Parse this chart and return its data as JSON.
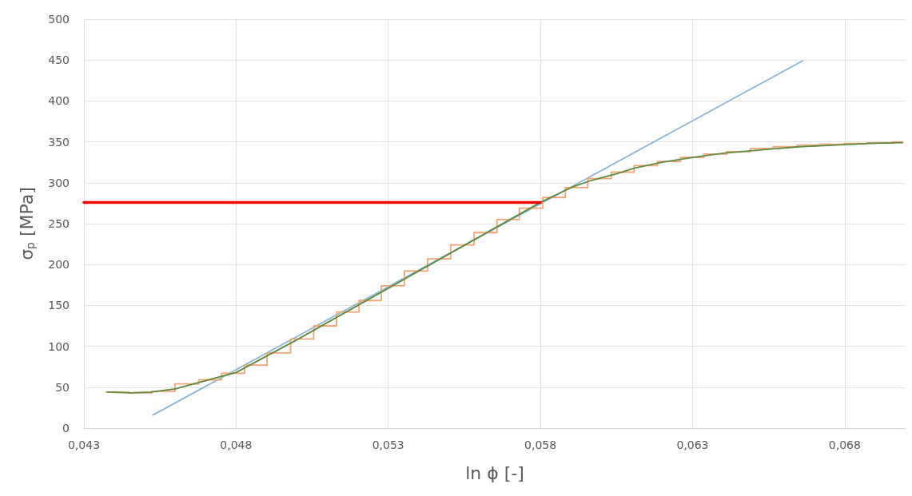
{
  "chart_data": {
    "type": "line",
    "xlabel": "ln ϕ [-]",
    "ylabel": "σ$_{p}$ [MPa]",
    "xlim": [
      0.043,
      0.07
    ],
    "xticks": [
      {
        "value": 0.043,
        "label": "0,043"
      },
      {
        "value": 0.048,
        "label": "0,048"
      },
      {
        "value": 0.053,
        "label": "0,053"
      },
      {
        "value": 0.058,
        "label": "0,058"
      },
      {
        "value": 0.063,
        "label": "0,063"
      },
      {
        "value": 0.068,
        "label": "0,068"
      }
    ],
    "ylim": [
      0,
      500
    ],
    "yticks": [
      0,
      50,
      100,
      150,
      200,
      250,
      300,
      350,
      400,
      450,
      500
    ],
    "grid": true,
    "marker": "none",
    "line_style": "solid",
    "series": [
      {
        "color": "#8cb4d8",
        "x": [
          0.04527,
          0.06661
        ],
        "values": [
          16,
          449
        ]
      },
      {
        "type": "step",
        "color": "#f2a474",
        "x": [
          0.04373,
          0.04448,
          0.04524,
          0.04599,
          0.04677,
          0.04752,
          0.04828,
          0.04902,
          0.04979,
          0.05055,
          0.0513,
          0.05204,
          0.05277,
          0.05353,
          0.05429,
          0.05505,
          0.05582,
          0.05657,
          0.05731,
          0.05808,
          0.05882,
          0.05956,
          0.06033,
          0.06108,
          0.06185,
          0.0626,
          0.06337,
          0.06412,
          0.0649,
          0.06565,
          0.06643,
          0.0672,
          0.06797,
          0.06874,
          0.06955,
          0.0699
        ],
        "values": [
          44,
          43,
          45,
          54,
          59,
          67,
          77,
          92,
          109,
          125,
          142,
          156,
          174,
          192,
          207,
          224,
          239,
          255,
          269,
          282,
          294,
          305,
          313,
          321,
          326,
          331,
          335,
          338,
          342,
          344,
          346,
          347,
          348,
          349,
          350,
          350
        ]
      },
      {
        "color": "#5f8a3c",
        "x": [
          0.04377,
          0.0445,
          0.0452,
          0.046,
          0.0467,
          0.0475,
          0.048,
          0.049,
          0.05,
          0.051,
          0.052,
          0.053,
          0.054,
          0.055,
          0.056,
          0.057,
          0.058,
          0.059,
          0.0596,
          0.0605,
          0.0611,
          0.062,
          0.063,
          0.064,
          0.0655,
          0.0665,
          0.0677,
          0.0688,
          0.0699
        ],
        "values": [
          44,
          43,
          44,
          48,
          55,
          63,
          68,
          88,
          108,
          129,
          150,
          171,
          192,
          213,
          234,
          255,
          276,
          294,
          302,
          311,
          318,
          325,
          331,
          336,
          341,
          344,
          346,
          348,
          349
        ]
      },
      {
        "color": "#ff0000",
        "x": [
          0.043,
          0.058
        ],
        "values": [
          276,
          276
        ]
      }
    ]
  }
}
